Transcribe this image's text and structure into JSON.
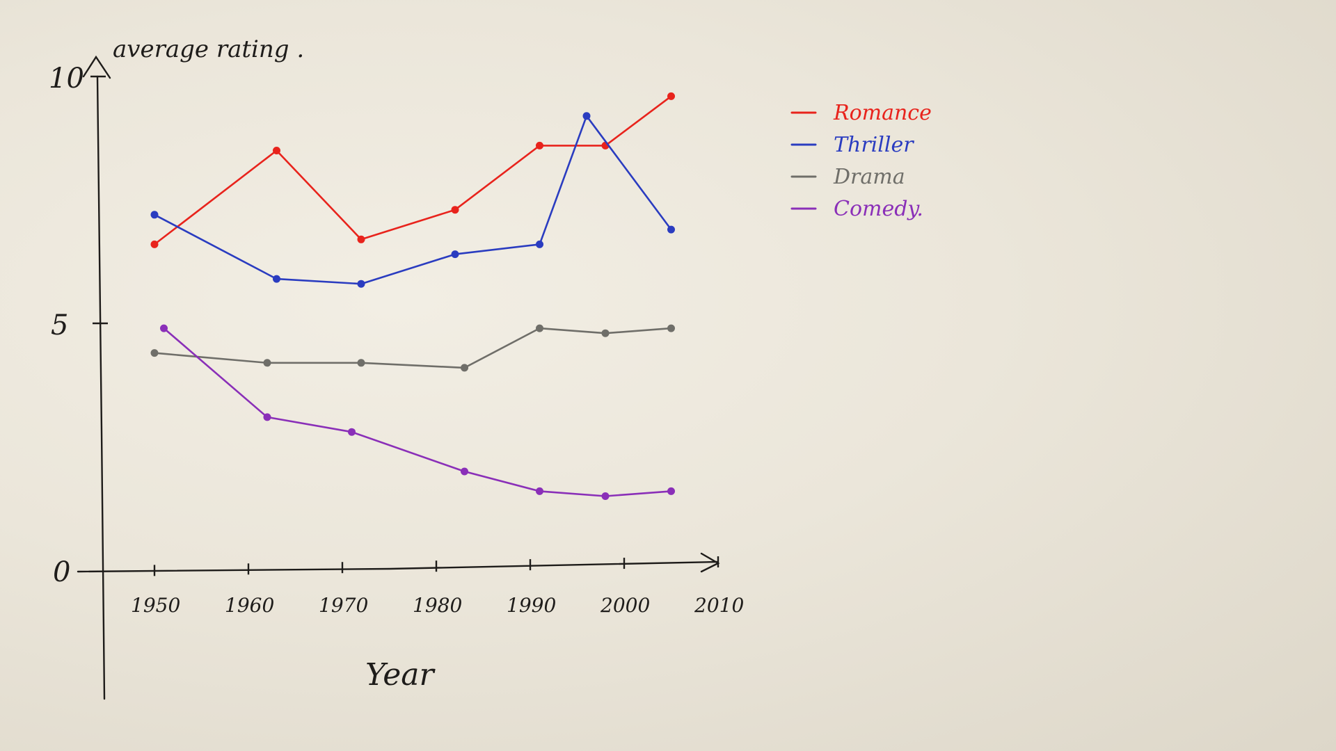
{
  "chart_data": {
    "type": "line",
    "xlabel": "Year",
    "ylabel": "average rating .",
    "ylim": [
      0,
      10
    ],
    "y_ticks": [
      {
        "value": 0,
        "label": "0"
      },
      {
        "value": 5,
        "label": "5"
      },
      {
        "value": 10,
        "label": "10"
      }
    ],
    "x_ticks": [
      {
        "value": 1950,
        "label": "1950"
      },
      {
        "value": 1960,
        "label": "1960"
      },
      {
        "value": 1970,
        "label": "1970"
      },
      {
        "value": 1980,
        "label": "1980"
      },
      {
        "value": 1990,
        "label": "1990"
      },
      {
        "value": 2000,
        "label": "2000"
      },
      {
        "value": 2010,
        "label": "2010"
      }
    ],
    "legend_position": "top-right",
    "grid": false,
    "series": [
      {
        "name": "Romance",
        "color": "#e8231c",
        "points": [
          [
            1950,
            6.6
          ],
          [
            1963,
            8.5
          ],
          [
            1972,
            6.7
          ],
          [
            1982,
            7.3
          ],
          [
            1991,
            8.6
          ],
          [
            1998,
            8.6
          ],
          [
            2005,
            9.6
          ]
        ]
      },
      {
        "name": "Thriller",
        "color": "#2a3cc0",
        "points": [
          [
            1950,
            7.2
          ],
          [
            1963,
            5.9
          ],
          [
            1972,
            5.8
          ],
          [
            1982,
            6.4
          ],
          [
            1991,
            6.6
          ],
          [
            1996,
            9.2
          ],
          [
            2005,
            6.9
          ]
        ]
      },
      {
        "name": "Drama",
        "color": "#6f6e69",
        "points": [
          [
            1950,
            4.4
          ],
          [
            1962,
            4.2
          ],
          [
            1972,
            4.2
          ],
          [
            1983,
            4.1
          ],
          [
            1991,
            4.9
          ],
          [
            1998,
            4.8
          ],
          [
            2005,
            4.9
          ]
        ]
      },
      {
        "name": "Comedy.",
        "color": "#8a2fb8",
        "points": [
          [
            1951,
            4.9
          ],
          [
            1962,
            3.1
          ],
          [
            1971,
            2.8
          ],
          [
            1983,
            2.0
          ],
          [
            1991,
            1.6
          ],
          [
            1998,
            1.5
          ],
          [
            2005,
            1.6
          ]
        ]
      }
    ]
  }
}
